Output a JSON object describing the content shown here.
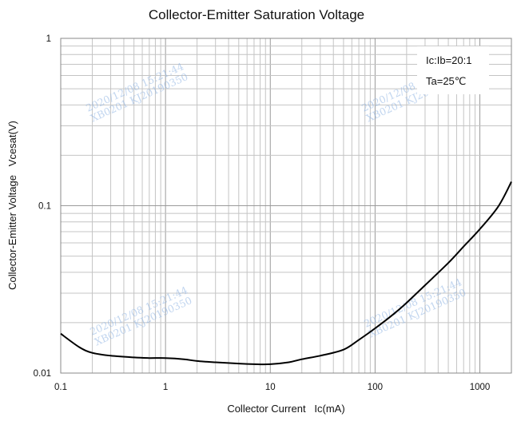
{
  "chart_data": {
    "type": "line",
    "title": "Collector-Emitter Saturation Voltage",
    "xlabel": "Collector Current   Ic(mA)",
    "ylabel": "Collector-Emitter Voltage   Vcesat(V)",
    "x_scale": "log",
    "y_scale": "log",
    "xlim": [
      0.1,
      2000
    ],
    "ylim": [
      0.01,
      1
    ],
    "x_tick_labels": [
      "0.1",
      "1",
      "10",
      "100",
      "1000"
    ],
    "y_tick_labels": [
      "0.01",
      "0.1",
      "1"
    ],
    "grid": true,
    "legend_position": "top-right",
    "legend_entries": [
      "Ic:Ib=20:1",
      "Ta=25℃"
    ],
    "series": [
      {
        "color": "#000000",
        "x": [
          0.1,
          0.15,
          0.2,
          0.3,
          0.5,
          0.7,
          1,
          1.5,
          2,
          3,
          5,
          7,
          10,
          15,
          20,
          30,
          50,
          70,
          100,
          150,
          200,
          300,
          500,
          700,
          1000,
          1500,
          2000
        ],
        "y": [
          0.0172,
          0.0143,
          0.0132,
          0.0127,
          0.0124,
          0.0123,
          0.0123,
          0.0121,
          0.0118,
          0.0116,
          0.0114,
          0.0113,
          0.0113,
          0.0116,
          0.0121,
          0.0127,
          0.0138,
          0.0158,
          0.0185,
          0.0225,
          0.0263,
          0.0335,
          0.0455,
          0.057,
          0.0725,
          0.099,
          0.139
        ]
      }
    ],
    "watermarks": [
      "2020/12/08  15:21:44",
      "XB0201 KJ20190350"
    ]
  }
}
